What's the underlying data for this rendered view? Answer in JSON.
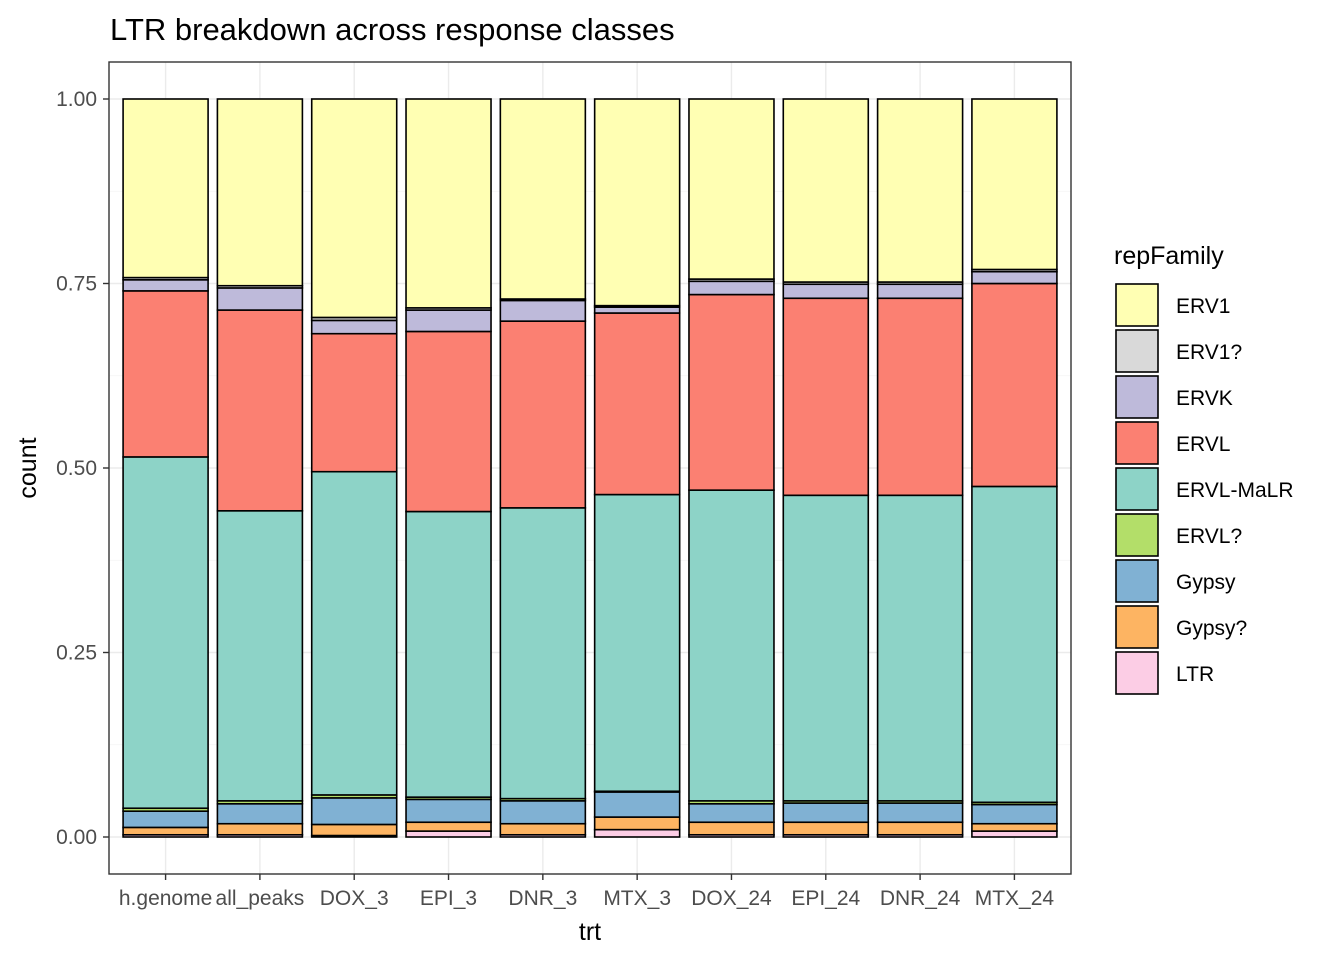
{
  "chart_data": {
    "type": "bar",
    "stacked": true,
    "position": "fill",
    "title": "LTR breakdown across response classes",
    "xlabel": "trt",
    "ylabel": "count",
    "ylim": [
      0,
      1
    ],
    "yticks": [
      "0.00",
      "0.25",
      "0.50",
      "0.75",
      "1.00"
    ],
    "ytick_values": [
      0,
      0.25,
      0.5,
      0.75,
      1.0
    ],
    "grid": true,
    "legend_title": "repFamily",
    "legend_position": "right",
    "categories": [
      "h.genome",
      "all_peaks",
      "DOX_3",
      "EPI_3",
      "DNR_3",
      "MTX_3",
      "DOX_24",
      "EPI_24",
      "DNR_24",
      "MTX_24"
    ],
    "series": [
      {
        "name": "LTR",
        "color": "#FCCDE5",
        "values": [
          0.003,
          0.003,
          0.002,
          0.008,
          0.003,
          0.01,
          0.003,
          0.003,
          0.003,
          0.008
        ]
      },
      {
        "name": "Gypsy?",
        "color": "#FDB462",
        "values": [
          0.01,
          0.015,
          0.015,
          0.012,
          0.015,
          0.017,
          0.017,
          0.017,
          0.017,
          0.01
        ]
      },
      {
        "name": "Gypsy",
        "color": "#80B1D3",
        "values": [
          0.022,
          0.027,
          0.036,
          0.031,
          0.031,
          0.034,
          0.025,
          0.026,
          0.026,
          0.026
        ]
      },
      {
        "name": "ERVL?",
        "color": "#B3DE69",
        "values": [
          0.004,
          0.004,
          0.004,
          0.003,
          0.003,
          0.001,
          0.004,
          0.003,
          0.003,
          0.003
        ]
      },
      {
        "name": "ERVL-MaLR",
        "color": "#8DD3C7",
        "values": [
          0.476,
          0.393,
          0.438,
          0.387,
          0.394,
          0.402,
          0.421,
          0.414,
          0.414,
          0.428
        ]
      },
      {
        "name": "ERVL",
        "color": "#FB8072",
        "values": [
          0.225,
          0.272,
          0.187,
          0.244,
          0.253,
          0.246,
          0.265,
          0.267,
          0.267,
          0.275
        ]
      },
      {
        "name": "ERVK",
        "color": "#BEBADA",
        "values": [
          0.015,
          0.03,
          0.018,
          0.029,
          0.028,
          0.008,
          0.018,
          0.019,
          0.019,
          0.016
        ]
      },
      {
        "name": "ERV1?",
        "color": "#D9D9D9",
        "values": [
          0.003,
          0.003,
          0.004,
          0.003,
          0.002,
          0.002,
          0.003,
          0.003,
          0.003,
          0.003
        ]
      },
      {
        "name": "ERV1",
        "color": "#FFFFB3",
        "values": [
          0.242,
          0.253,
          0.296,
          0.283,
          0.271,
          0.28,
          0.244,
          0.248,
          0.248,
          0.231
        ]
      }
    ],
    "legend_order": [
      "ERV1",
      "ERV1?",
      "ERVK",
      "ERVL",
      "ERVL-MaLR",
      "ERVL?",
      "Gypsy",
      "Gypsy?",
      "LTR"
    ]
  }
}
